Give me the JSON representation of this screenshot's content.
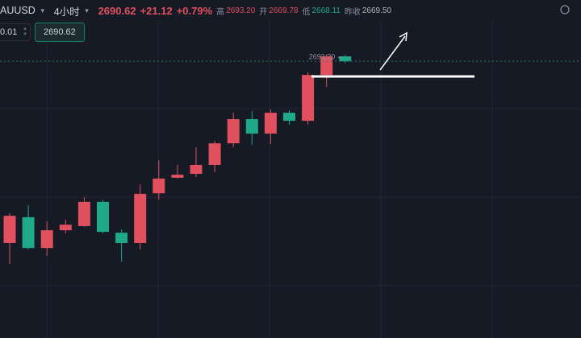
{
  "header": {
    "symbol": "AUUSD",
    "interval": "4小时",
    "price": "2690.62",
    "change": "+21.12",
    "change_pct": "+0.79%",
    "high_label": "高",
    "high": "2693.20",
    "open_label": "开",
    "open": "2669.78",
    "low_label": "低",
    "low": "2668.11",
    "prev_close_label": "昨收",
    "prev_close": "2669.50"
  },
  "order_panel": {
    "quantity": "0.01",
    "price": "2690.62"
  },
  "chart_data": {
    "type": "candlestick",
    "open": [
      2625.2,
      2634.5,
      2623.4,
      2629.8,
      2631.3,
      2640.0,
      2628.9,
      2625.2,
      2643.1,
      2648.7,
      2650.1,
      2653.3,
      2661.1,
      2669.8,
      2664.6,
      2672.1,
      2669.2,
      2685.7,
      2692.4
    ],
    "high": [
      2635.9,
      2638.8,
      2633.0,
      2633.6,
      2641.7,
      2640.8,
      2630.1,
      2646.3,
      2655.0,
      2653.3,
      2659.7,
      2662.0,
      2672.1,
      2672.7,
      2673.3,
      2673.0,
      2686.6,
      2693.2,
      2692.9
    ],
    "low": [
      2617.6,
      2622.9,
      2620.5,
      2628.7,
      2631.0,
      2628.7,
      2618.5,
      2622.9,
      2640.8,
      2648.4,
      2648.9,
      2650.7,
      2659.7,
      2660.5,
      2660.8,
      2667.8,
      2667.8,
      2681.4,
      2690.0
    ],
    "close": [
      2635.0,
      2623.4,
      2629.8,
      2631.8,
      2640.0,
      2629.2,
      2625.2,
      2642.9,
      2648.4,
      2649.8,
      2653.3,
      2661.1,
      2669.8,
      2664.6,
      2672.1,
      2669.2,
      2685.7,
      2692.4,
      2690.62
    ],
    "up_color": "#e0505f",
    "down_color": "#1fa88a",
    "ylim": [
      2591,
      2704
    ],
    "last_price": 2690.62,
    "high_marker": {
      "value": 2693.2,
      "label": "2693.20"
    }
  }
}
